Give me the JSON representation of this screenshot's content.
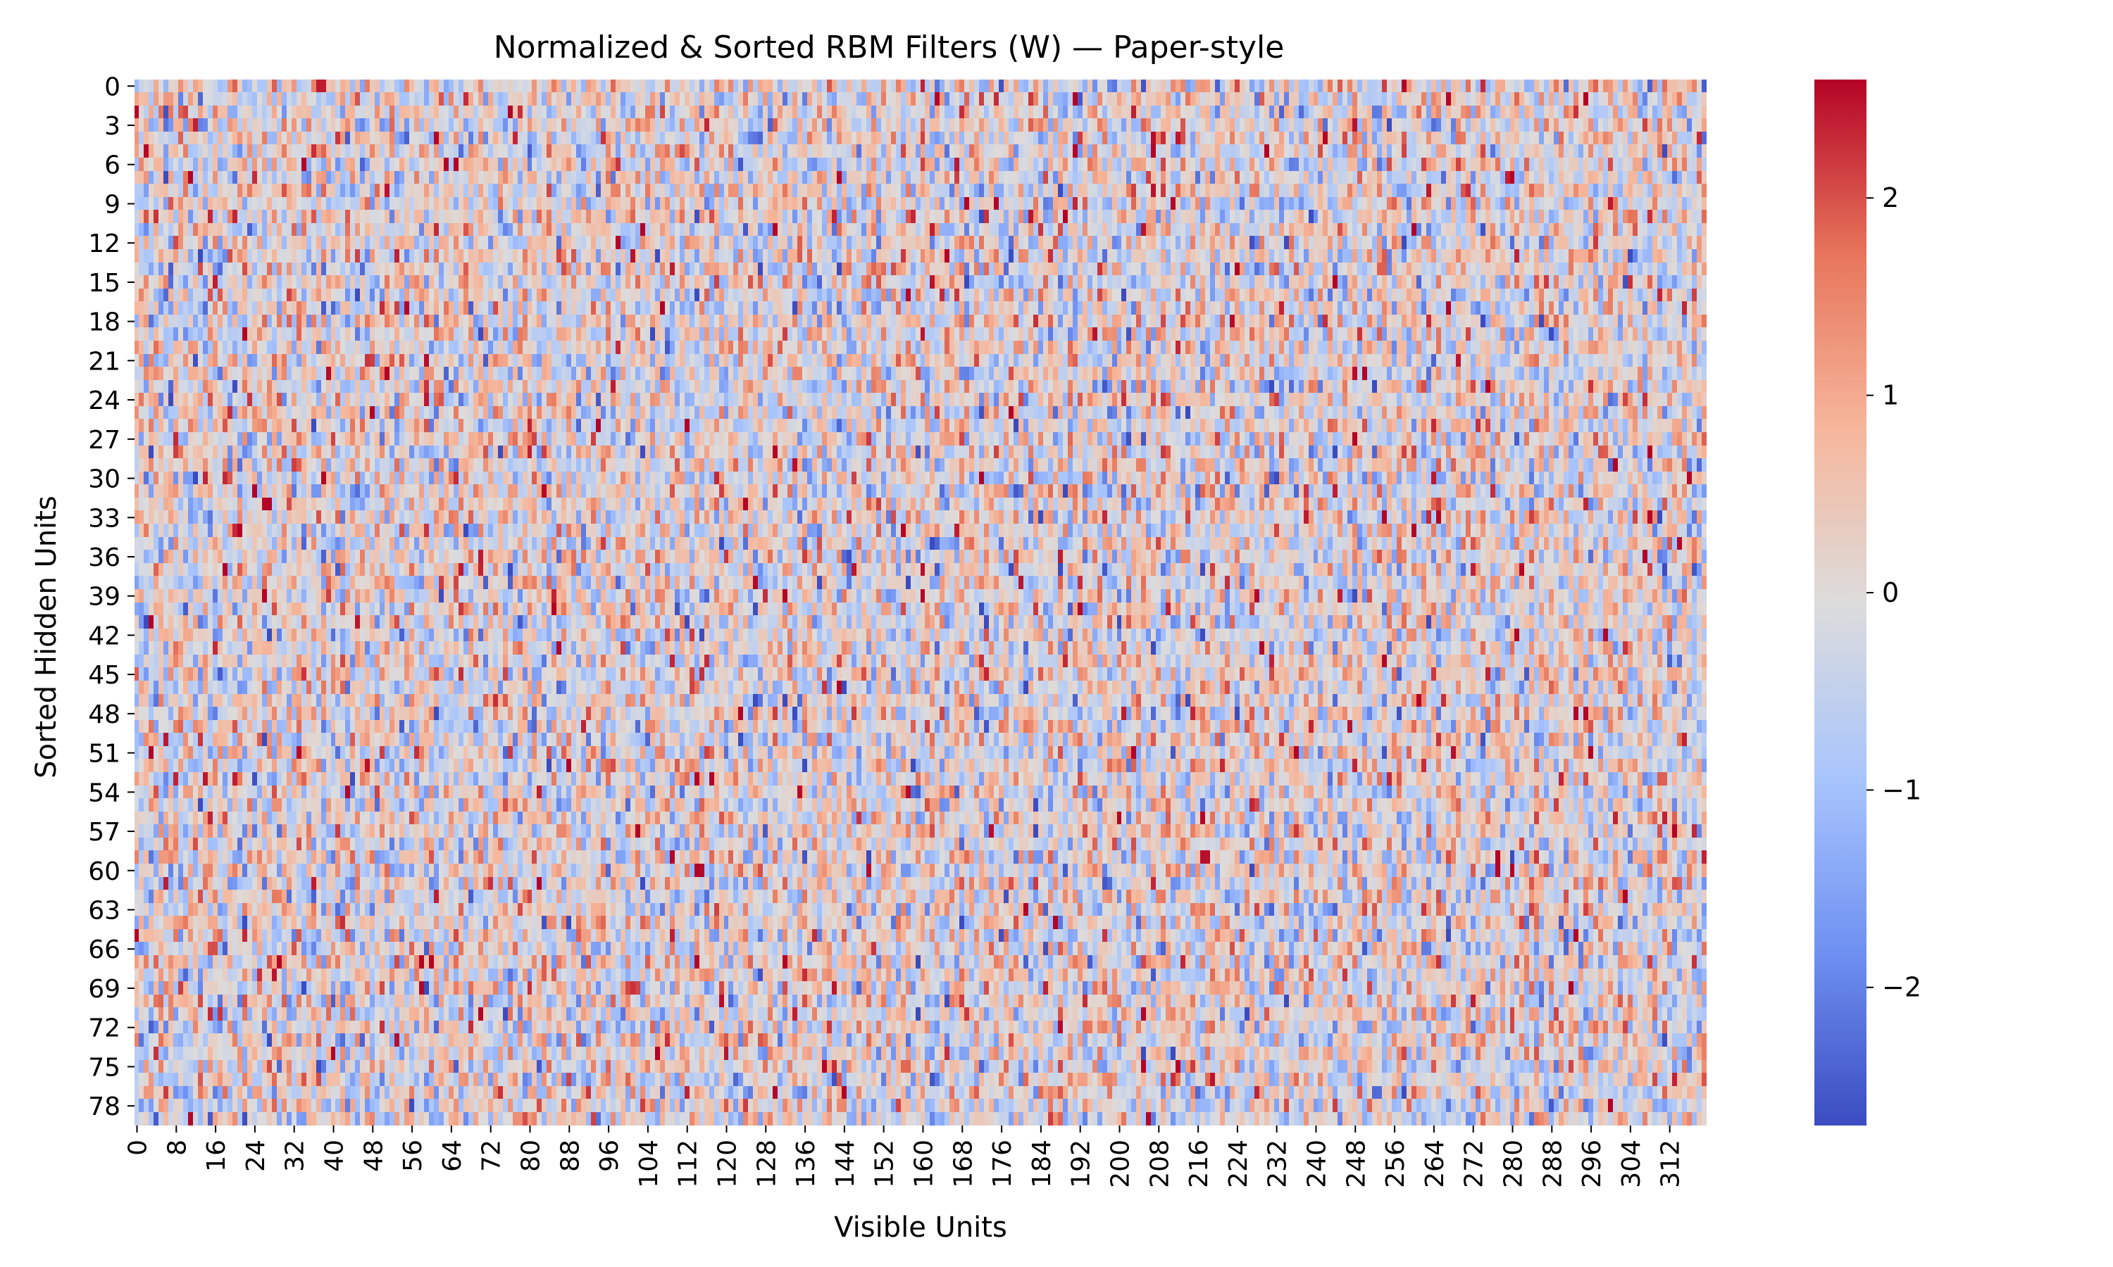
{
  "chart_data": {
    "type": "heatmap",
    "title": "Normalized & Sorted RBM Filters (W) — Paper-style",
    "xlabel": "Visible Units",
    "ylabel": "Sorted Hidden Units",
    "n_rows": 80,
    "n_cols": 320,
    "x_tick_labels": [
      "0",
      "8",
      "16",
      "24",
      "32",
      "40",
      "48",
      "56",
      "64",
      "72",
      "80",
      "88",
      "96",
      "104",
      "112",
      "120",
      "128",
      "136",
      "144",
      "152",
      "160",
      "168",
      "176",
      "184",
      "192",
      "200",
      "208",
      "216",
      "224",
      "232",
      "240",
      "248",
      "256",
      "264",
      "272",
      "280",
      "288",
      "296",
      "304",
      "312"
    ],
    "y_tick_labels": [
      "0",
      "3",
      "6",
      "9",
      "12",
      "15",
      "18",
      "21",
      "24",
      "27",
      "30",
      "33",
      "36",
      "39",
      "42",
      "45",
      "48",
      "51",
      "54",
      "57",
      "60",
      "63",
      "66",
      "69",
      "72",
      "75",
      "78"
    ],
    "colormap": "coolwarm",
    "colorbar": {
      "vmin": -2.7,
      "vmax": 2.6,
      "tick_values": [
        -2,
        -1,
        0,
        1,
        2
      ],
      "tick_labels": [
        "−2",
        "−1",
        "0",
        "1",
        "2"
      ]
    },
    "colormap_stops": [
      "#3b4cc0",
      "#6f91f2",
      "#a9c5fc",
      "#dddcdc",
      "#f6b69b",
      "#e7755b",
      "#b40426"
    ],
    "value_distribution": "approximately standard normal (normalized filter weights), mean 0, std 1"
  }
}
